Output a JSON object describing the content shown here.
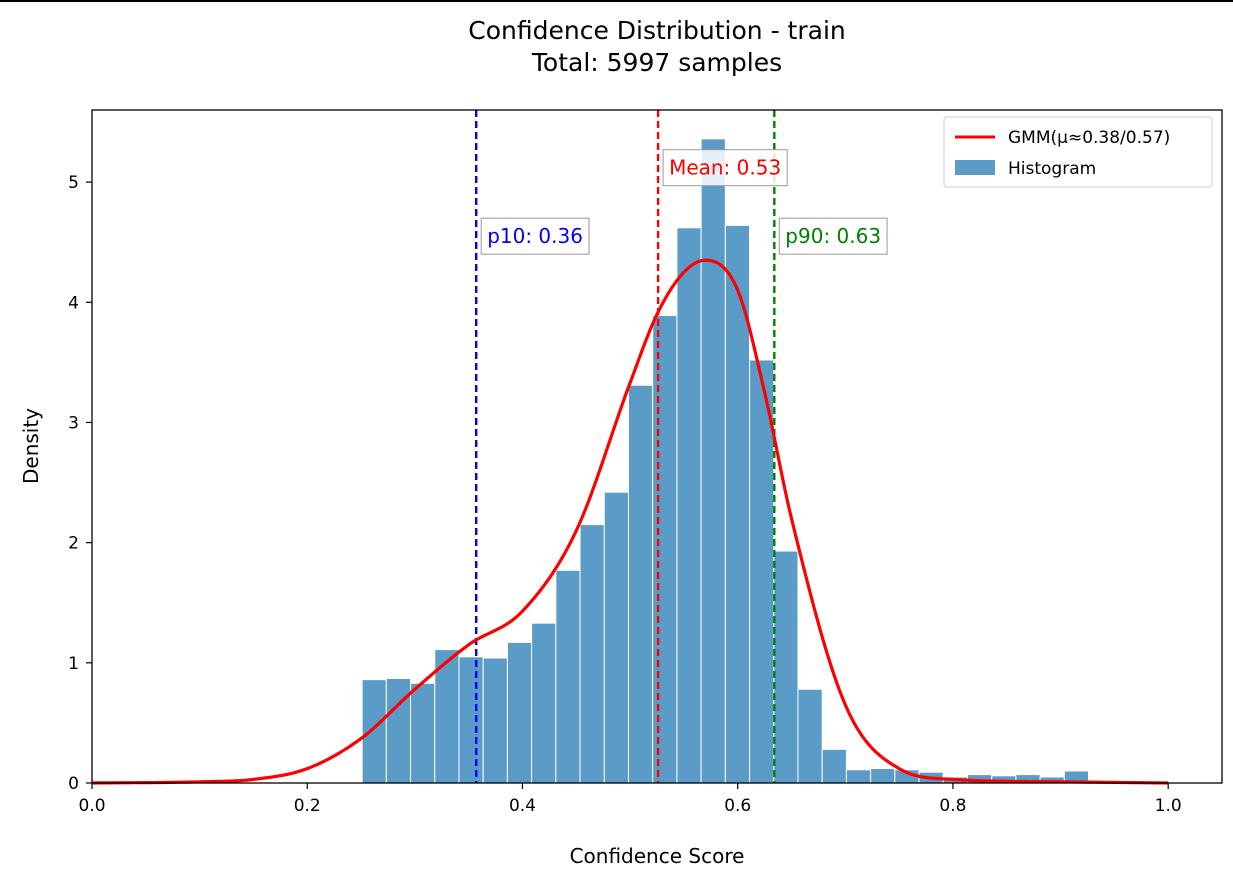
{
  "chart_data": {
    "type": "bar",
    "title": "Confidence Distribution - train",
    "subtitle": "Total: 5997 samples",
    "xlabel": "Confidence Score",
    "ylabel": "Density",
    "xlim": [
      0.0,
      1.05
    ],
    "ylim": [
      0,
      5.6
    ],
    "x_ticks": [
      0.0,
      0.2,
      0.4,
      0.6,
      0.8,
      1.0
    ],
    "x_tick_labels": [
      "0.0",
      "0.2",
      "0.4",
      "0.6",
      "0.8",
      "1.0"
    ],
    "y_ticks": [
      0,
      1,
      2,
      3,
      4,
      5
    ],
    "y_tick_labels": [
      "0",
      "1",
      "2",
      "3",
      "4",
      "5"
    ],
    "grid": false,
    "legend_position": "top-right",
    "histogram": {
      "name": "Histogram",
      "color": "#5a9bc8",
      "bin_edges": [
        0.251,
        0.2735,
        0.296,
        0.3185,
        0.341,
        0.3635,
        0.386,
        0.4085,
        0.431,
        0.4535,
        0.476,
        0.4985,
        0.521,
        0.5435,
        0.566,
        0.5885,
        0.611,
        0.6335,
        0.656,
        0.6785,
        0.701,
        0.7235,
        0.746,
        0.7685,
        0.791,
        0.8135,
        0.836,
        0.8585,
        0.881,
        0.9035,
        0.926
      ],
      "values": [
        0.86,
        0.87,
        0.83,
        1.11,
        1.05,
        1.04,
        1.17,
        1.33,
        1.77,
        2.15,
        2.42,
        3.31,
        3.89,
        4.62,
        5.36,
        4.64,
        3.52,
        1.93,
        0.78,
        0.28,
        0.11,
        0.12,
        0.11,
        0.09,
        0.05,
        0.07,
        0.06,
        0.07,
        0.05,
        0.1
      ]
    },
    "curve": {
      "name": "GMM(μ≈0.38/0.57)",
      "color": "#ff0000",
      "x": [
        0.0,
        0.1,
        0.15,
        0.2,
        0.25,
        0.3,
        0.35,
        0.4,
        0.45,
        0.5,
        0.525,
        0.55,
        0.57,
        0.6,
        0.625,
        0.65,
        0.7,
        0.75,
        0.8,
        0.9,
        1.0
      ],
      "y": [
        0.0,
        0.01,
        0.03,
        0.12,
        0.37,
        0.78,
        1.15,
        1.43,
        2.1,
        3.33,
        3.9,
        4.25,
        4.35,
        4.1,
        3.25,
        2.2,
        0.65,
        0.12,
        0.03,
        0.01,
        0.0
      ]
    },
    "reference_lines": [
      {
        "label": "Mean: 0.53",
        "x": 0.526,
        "color": "#ff0000"
      },
      {
        "label": "p10: 0.36",
        "x": 0.357,
        "color": "#0000ff"
      },
      {
        "label": "p90: 0.63",
        "x": 0.634,
        "color": "#008000"
      }
    ]
  }
}
